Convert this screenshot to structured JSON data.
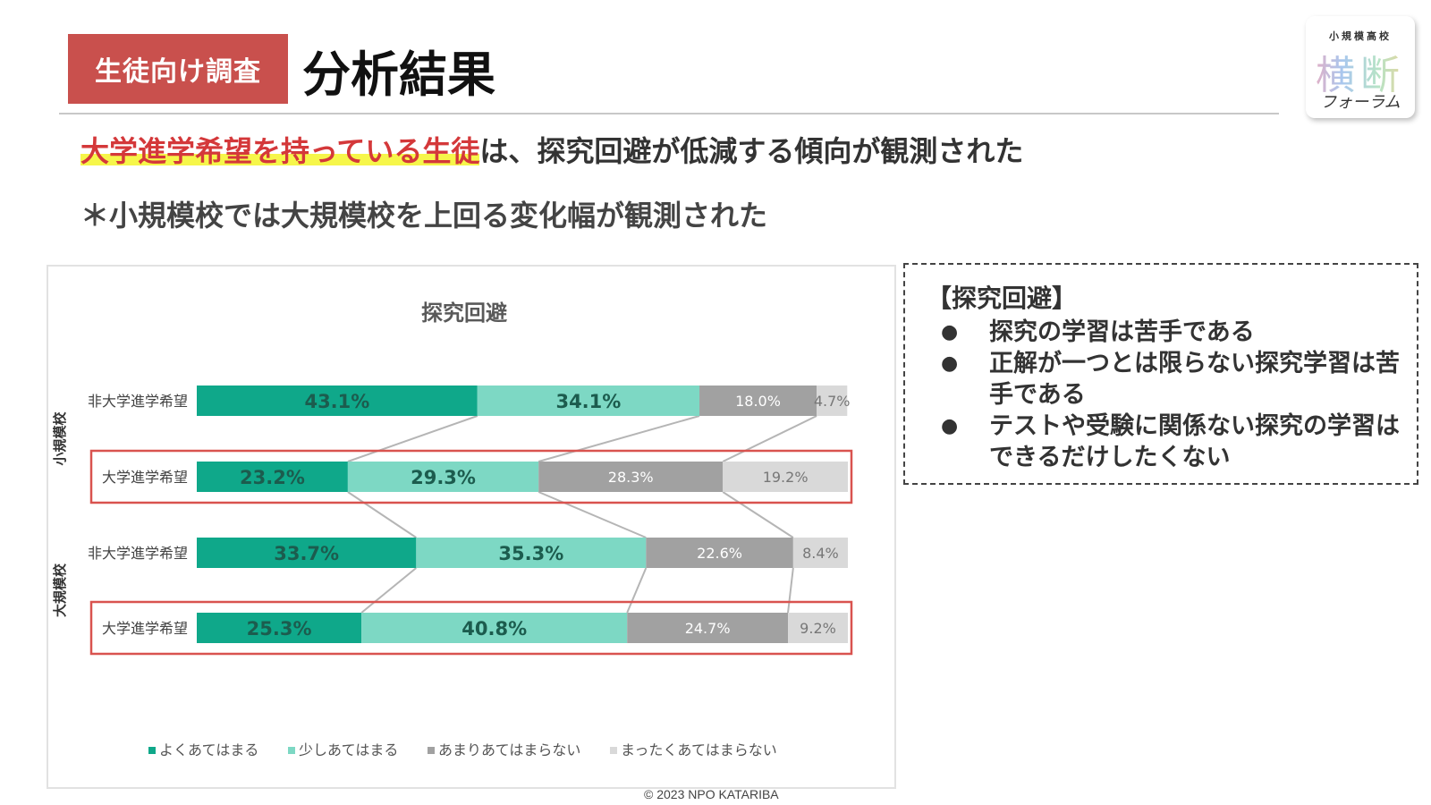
{
  "header": {
    "tag": "生徒向け調査",
    "title": "分析結果",
    "logo": {
      "top": "小規模高校",
      "mid": "横断",
      "bottom": "フォーラム"
    }
  },
  "headline": {
    "highlight": "大学進学希望を持っている生徒",
    "rest": "は、探究回避が低減する傾向が観測された"
  },
  "subline": "＊小規模校では大規模校を上回る変化幅が観測された",
  "note": {
    "title": "【探究回避】",
    "items": [
      "探究の学習は苦手である",
      "正解が一つとは限らない探究学習は苦手である",
      "テストや受験に関係ない探究の学習はできるだけしたくない"
    ]
  },
  "copyright": "© 2023 NPO KATARIBA",
  "chart_data": {
    "type": "bar",
    "orientation": "horizontal",
    "stacked": "100%",
    "title": "探究回避",
    "groups": [
      {
        "name": "小規模校",
        "rows": [
          "非大学進学希望",
          "大学進学希望"
        ]
      },
      {
        "name": "大規模校",
        "rows": [
          "非大学進学希望",
          "大学進学希望"
        ]
      }
    ],
    "categories": [
      "非大学進学希望",
      "大学進学希望",
      "非大学進学希望",
      "大学進学希望"
    ],
    "series": [
      {
        "name": "よくあてはまる",
        "color": "#0fa88a",
        "values": [
          43.1,
          23.2,
          33.7,
          25.3
        ]
      },
      {
        "name": "少しあてはまる",
        "color": "#7dd8c4",
        "values": [
          34.1,
          29.3,
          35.3,
          40.8
        ]
      },
      {
        "name": "あまりあてはまらない",
        "color": "#a1a1a1",
        "values": [
          18.0,
          28.3,
          22.6,
          24.7
        ]
      },
      {
        "name": "まったくあてはまらない",
        "color": "#d9d9d9",
        "values": [
          4.7,
          19.2,
          8.4,
          9.2
        ]
      }
    ],
    "highlighted_rows": [
      1,
      3
    ],
    "highlight_color": "#d9534f",
    "label_colors": [
      "#1c5c4e",
      "#1c5c4e",
      "#ffffff",
      "#777777"
    ],
    "label_weights": [
      "bold",
      "bold",
      "normal",
      "normal"
    ],
    "connector_lines": true,
    "legend_position": "bottom",
    "xlim": [
      0,
      100
    ]
  }
}
